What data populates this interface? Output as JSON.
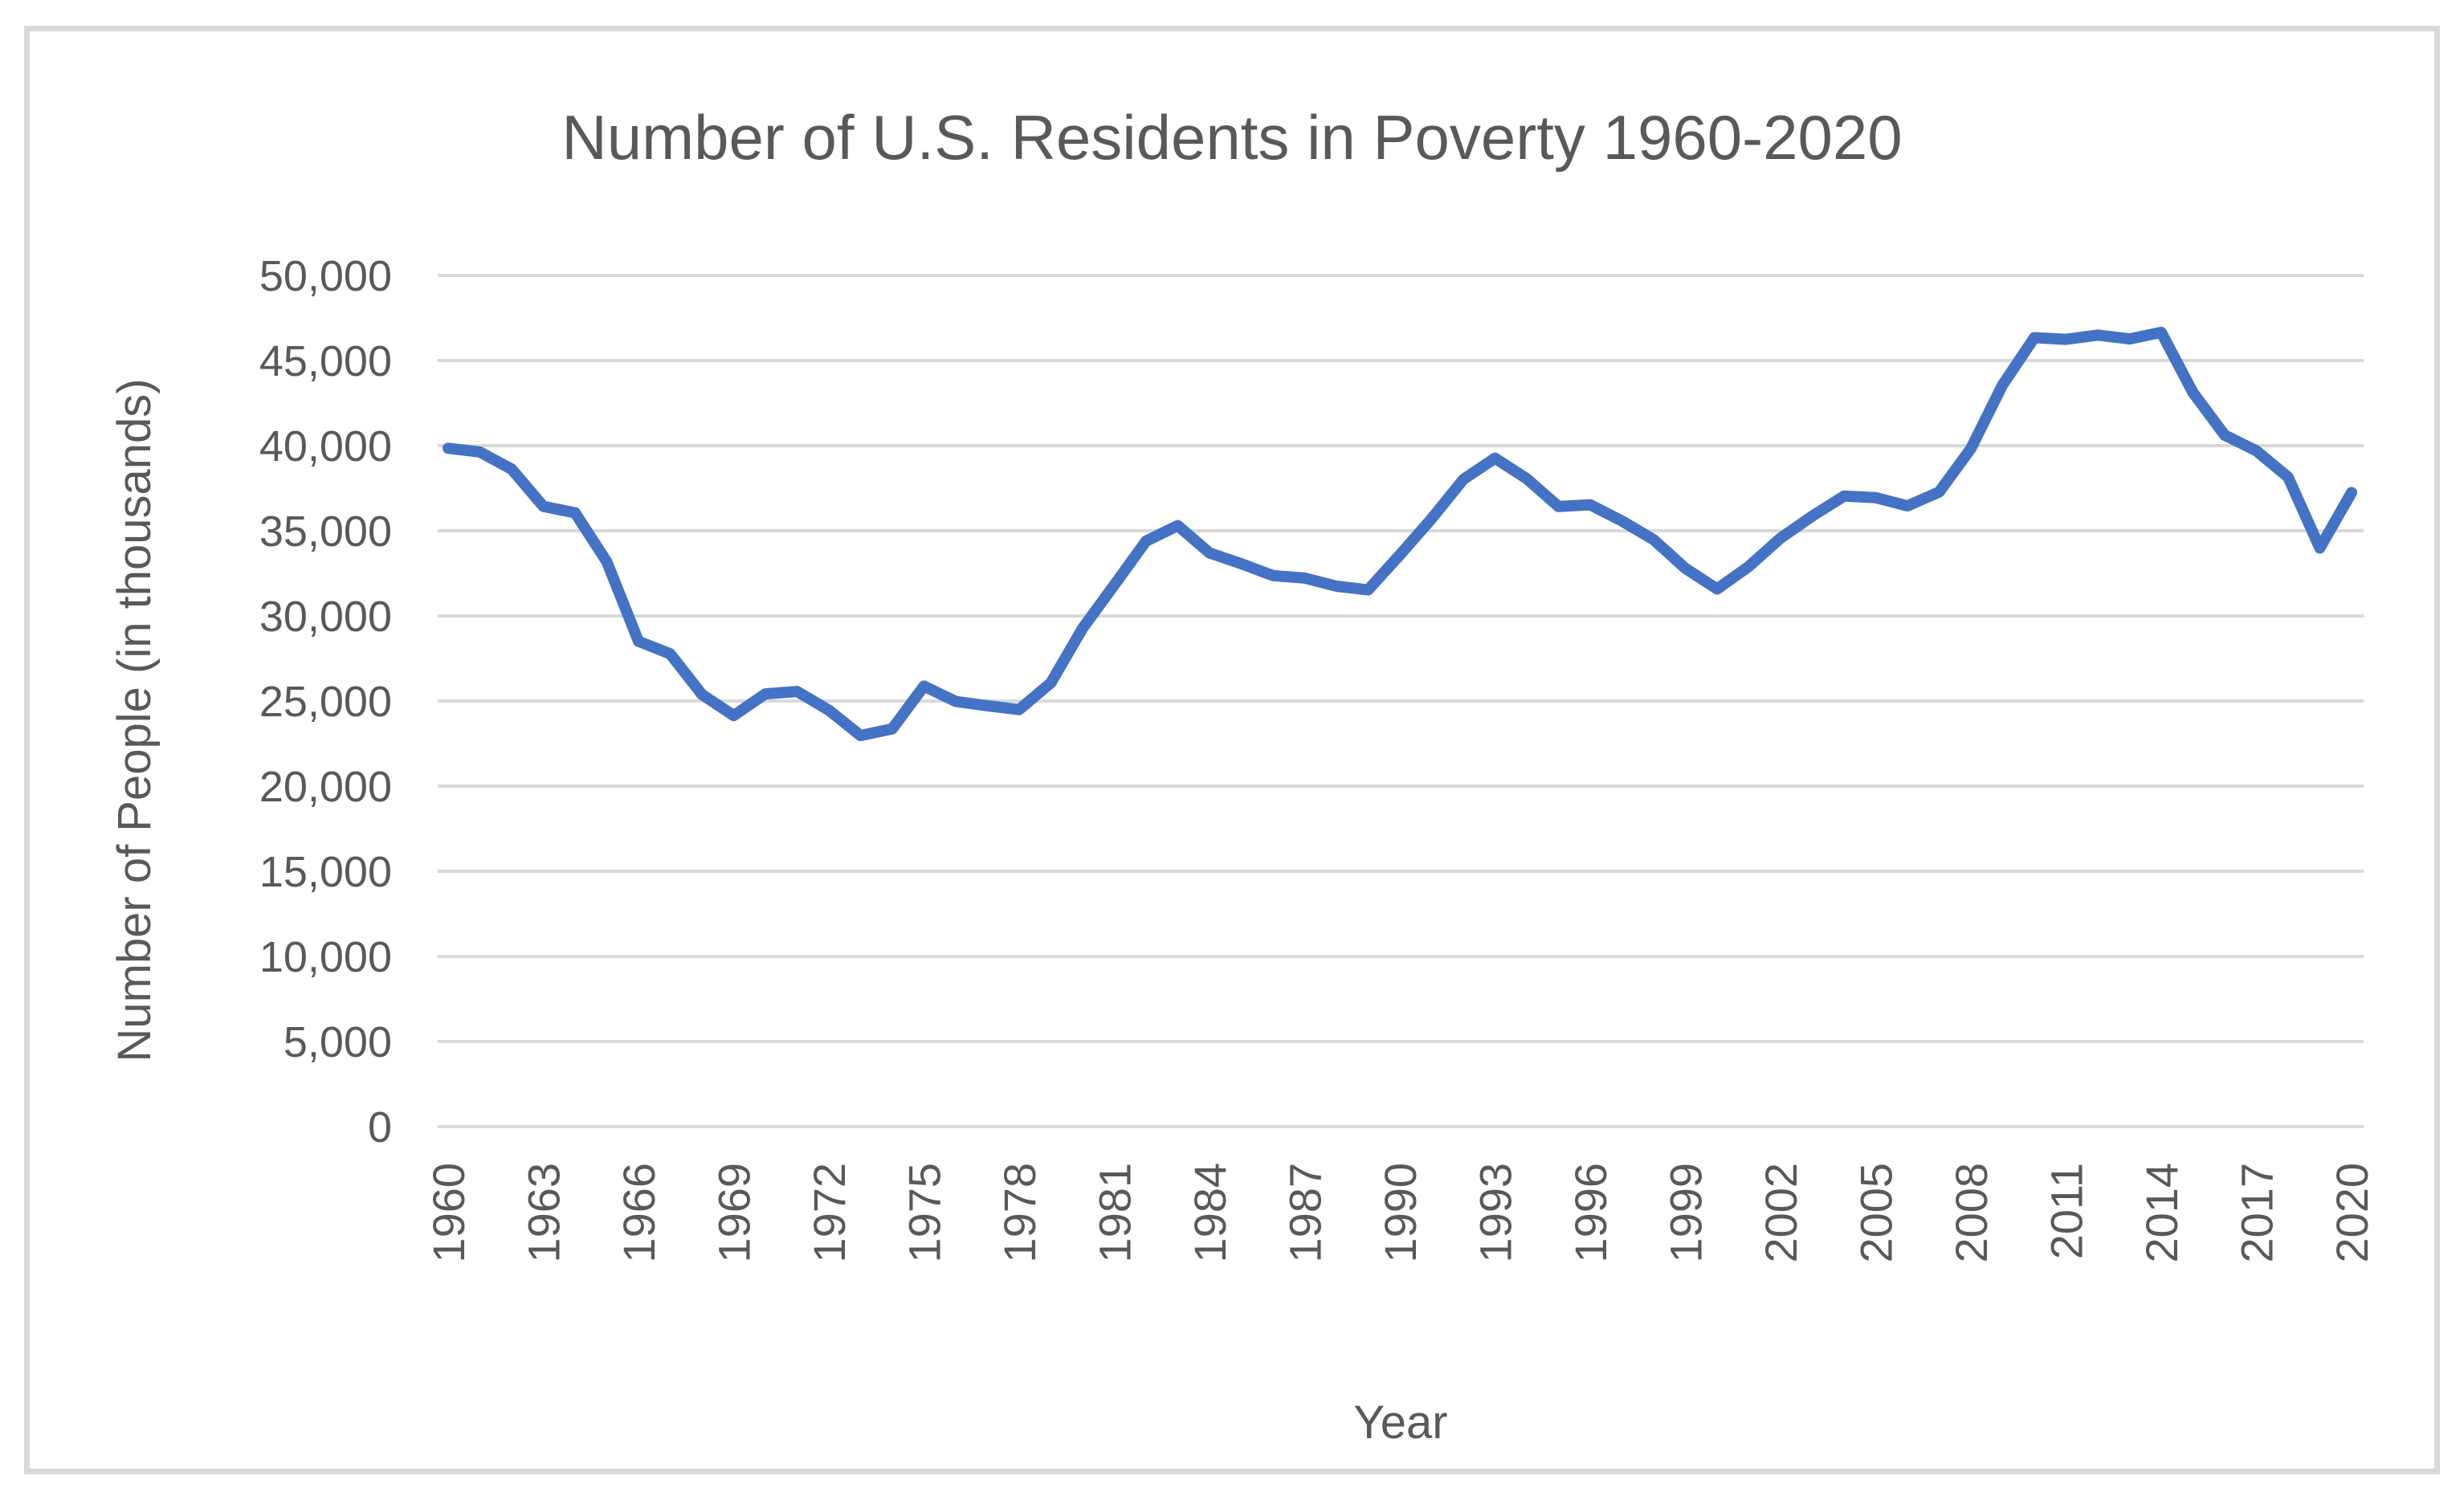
{
  "chart_data": {
    "type": "line",
    "title": "Number of U.S. Residents in Poverty 1960-2020",
    "xlabel": "Year",
    "ylabel": "Number of People (in thousands)",
    "x": [
      1960,
      1961,
      1962,
      1963,
      1964,
      1965,
      1966,
      1967,
      1968,
      1969,
      1970,
      1971,
      1972,
      1973,
      1974,
      1975,
      1976,
      1977,
      1978,
      1979,
      1980,
      1981,
      1982,
      1983,
      1984,
      1985,
      1986,
      1987,
      1988,
      1989,
      1990,
      1991,
      1992,
      1993,
      1994,
      1995,
      1996,
      1997,
      1998,
      1999,
      2000,
      2001,
      2002,
      2003,
      2004,
      2005,
      2006,
      2007,
      2008,
      2009,
      2010,
      2011,
      2012,
      2013,
      2014,
      2015,
      2016,
      2017,
      2018,
      2019,
      2020
    ],
    "values": [
      39851,
      39628,
      38625,
      36436,
      36055,
      33185,
      28510,
      27769,
      25389,
      24147,
      25420,
      25559,
      24460,
      22973,
      23370,
      25877,
      24975,
      24720,
      24497,
      26072,
      29272,
      31822,
      34398,
      35303,
      33700,
      33064,
      32370,
      32221,
      31745,
      31528,
      33585,
      35708,
      38014,
      39265,
      38059,
      36425,
      36529,
      35574,
      34476,
      32791,
      31581,
      32907,
      34570,
      35861,
      37040,
      36950,
      36460,
      37276,
      39829,
      43569,
      46343,
      46247,
      46496,
      46269,
      46657,
      43123,
      40616,
      39698,
      38146,
      33984,
      37247
    ],
    "ylim": [
      0,
      50000
    ],
    "ytick_step": 5000,
    "ytick_labels": [
      "0",
      "5,000",
      "10,000",
      "15,000",
      "20,000",
      "25,000",
      "30,000",
      "35,000",
      "40,000",
      "45,000",
      "50,000"
    ],
    "xtick_labels": [
      "1960",
      "1963",
      "1966",
      "1969",
      "1972",
      "1975",
      "1978",
      "1981",
      "1984",
      "1987",
      "1990",
      "1993",
      "1996",
      "1999",
      "2002",
      "2005",
      "2008",
      "2011",
      "2014",
      "2017",
      "2020"
    ],
    "grid": true,
    "legend": false,
    "line_color": "#4472C4",
    "grid_color": "#D9D9D9",
    "text_color": "#595959",
    "border_color": "#D9D9D9"
  }
}
